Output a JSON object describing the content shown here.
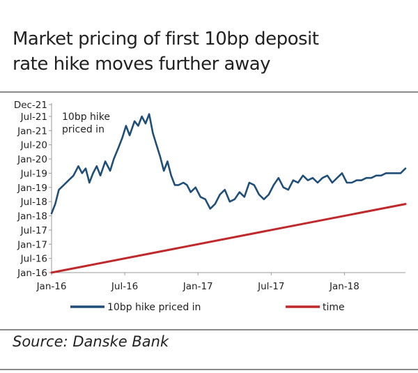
{
  "title_line1": "Market pricing of first 10bp deposit",
  "title_line2": "rate hike moves further away",
  "source": "Source: Danske Bank",
  "colors": {
    "series": "#1f4e79",
    "time": "#c0292b",
    "axis": "#9a9a9a"
  },
  "chart_data": {
    "type": "line",
    "title": "Market pricing of first 10bp deposit rate hike moves further away",
    "annotation": "10bp hike\npriced in",
    "x_ticks": [
      "Jan-16",
      "Jul-16",
      "Jan-17",
      "Jul-17",
      "Jan-18"
    ],
    "y_ticks": [
      "Jan-16",
      "Jul-16",
      "Jan-17",
      "Jul-17",
      "Jan-18",
      "Jul-18",
      "Jan-19",
      "Jul-19",
      "Jan-20",
      "Jul-20",
      "Jan-21",
      "Jul-21",
      "Dec-21"
    ],
    "xlim": [
      0,
      29
    ],
    "ylim": [
      0,
      71
    ],
    "units": "months since Jan-16",
    "series": [
      {
        "name": "10bp hike priced in",
        "x": [
          0,
          0.3,
          0.6,
          1.0,
          1.4,
          1.8,
          2.2,
          2.5,
          2.8,
          3.1,
          3.4,
          3.7,
          4.0,
          4.4,
          4.8,
          5.1,
          5.5,
          5.8,
          6.1,
          6.4,
          6.8,
          7.1,
          7.4,
          7.7,
          8.0,
          8.3,
          8.6,
          8.9,
          9.2,
          9.5,
          9.8,
          10.1,
          10.4,
          10.8,
          11.1,
          11.4,
          11.8,
          12.2,
          12.6,
          13.0,
          13.4,
          13.8,
          14.2,
          14.6,
          15.0,
          15.4,
          15.8,
          16.2,
          16.6,
          17.0,
          17.4,
          17.8,
          18.2,
          18.6,
          19.0,
          19.4,
          19.8,
          20.2,
          20.6,
          21.0,
          21.4,
          21.8,
          22.2,
          22.6,
          23.0,
          23.4,
          23.8,
          24.2,
          24.6,
          25.0,
          25.4,
          25.8,
          26.2,
          26.6,
          27.0,
          27.4,
          27.8,
          28.2,
          28.6,
          29.0
        ],
        "y": [
          25,
          29,
          35,
          37,
          39,
          41,
          45,
          42,
          44,
          38,
          42,
          45,
          41,
          47,
          43,
          48,
          53,
          57,
          62,
          58,
          64,
          62,
          66,
          63,
          67,
          59,
          54,
          49,
          43,
          47,
          41,
          37,
          37,
          38,
          37,
          34,
          36,
          32,
          31,
          27,
          29,
          33,
          35,
          30,
          31,
          34,
          32,
          38,
          37,
          33,
          31,
          33,
          37,
          40,
          36,
          35,
          39,
          38,
          41,
          39,
          40,
          38,
          40,
          41,
          38,
          40,
          42,
          38,
          38,
          39,
          39,
          40,
          40,
          41,
          41,
          42,
          42,
          42,
          42,
          44
        ]
      },
      {
        "name": "time",
        "x": [
          0,
          29
        ],
        "y": [
          0,
          29
        ]
      }
    ]
  }
}
